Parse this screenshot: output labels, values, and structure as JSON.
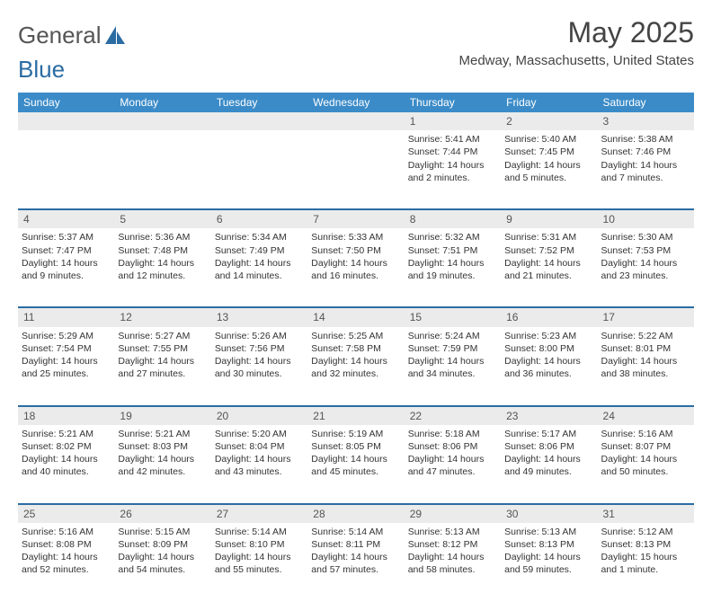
{
  "logo": {
    "text1": "General",
    "text2": "Blue"
  },
  "header": {
    "month": "May 2025",
    "location": "Medway, Massachusetts, United States"
  },
  "colors": {
    "accent": "#3b8bc8",
    "border": "#2b6ca3",
    "daybg": "#ebebeb"
  },
  "weekdays": [
    "Sunday",
    "Monday",
    "Tuesday",
    "Wednesday",
    "Thursday",
    "Friday",
    "Saturday"
  ],
  "layout": {
    "first_day_index": 4,
    "days_in_month": 31
  },
  "days": {
    "1": {
      "sunrise": "5:41 AM",
      "sunset": "7:44 PM",
      "daylight": "14 hours and 2 minutes."
    },
    "2": {
      "sunrise": "5:40 AM",
      "sunset": "7:45 PM",
      "daylight": "14 hours and 5 minutes."
    },
    "3": {
      "sunrise": "5:38 AM",
      "sunset": "7:46 PM",
      "daylight": "14 hours and 7 minutes."
    },
    "4": {
      "sunrise": "5:37 AM",
      "sunset": "7:47 PM",
      "daylight": "14 hours and 9 minutes."
    },
    "5": {
      "sunrise": "5:36 AM",
      "sunset": "7:48 PM",
      "daylight": "14 hours and 12 minutes."
    },
    "6": {
      "sunrise": "5:34 AM",
      "sunset": "7:49 PM",
      "daylight": "14 hours and 14 minutes."
    },
    "7": {
      "sunrise": "5:33 AM",
      "sunset": "7:50 PM",
      "daylight": "14 hours and 16 minutes."
    },
    "8": {
      "sunrise": "5:32 AM",
      "sunset": "7:51 PM",
      "daylight": "14 hours and 19 minutes."
    },
    "9": {
      "sunrise": "5:31 AM",
      "sunset": "7:52 PM",
      "daylight": "14 hours and 21 minutes."
    },
    "10": {
      "sunrise": "5:30 AM",
      "sunset": "7:53 PM",
      "daylight": "14 hours and 23 minutes."
    },
    "11": {
      "sunrise": "5:29 AM",
      "sunset": "7:54 PM",
      "daylight": "14 hours and 25 minutes."
    },
    "12": {
      "sunrise": "5:27 AM",
      "sunset": "7:55 PM",
      "daylight": "14 hours and 27 minutes."
    },
    "13": {
      "sunrise": "5:26 AM",
      "sunset": "7:56 PM",
      "daylight": "14 hours and 30 minutes."
    },
    "14": {
      "sunrise": "5:25 AM",
      "sunset": "7:58 PM",
      "daylight": "14 hours and 32 minutes."
    },
    "15": {
      "sunrise": "5:24 AM",
      "sunset": "7:59 PM",
      "daylight": "14 hours and 34 minutes."
    },
    "16": {
      "sunrise": "5:23 AM",
      "sunset": "8:00 PM",
      "daylight": "14 hours and 36 minutes."
    },
    "17": {
      "sunrise": "5:22 AM",
      "sunset": "8:01 PM",
      "daylight": "14 hours and 38 minutes."
    },
    "18": {
      "sunrise": "5:21 AM",
      "sunset": "8:02 PM",
      "daylight": "14 hours and 40 minutes."
    },
    "19": {
      "sunrise": "5:21 AM",
      "sunset": "8:03 PM",
      "daylight": "14 hours and 42 minutes."
    },
    "20": {
      "sunrise": "5:20 AM",
      "sunset": "8:04 PM",
      "daylight": "14 hours and 43 minutes."
    },
    "21": {
      "sunrise": "5:19 AM",
      "sunset": "8:05 PM",
      "daylight": "14 hours and 45 minutes."
    },
    "22": {
      "sunrise": "5:18 AM",
      "sunset": "8:06 PM",
      "daylight": "14 hours and 47 minutes."
    },
    "23": {
      "sunrise": "5:17 AM",
      "sunset": "8:06 PM",
      "daylight": "14 hours and 49 minutes."
    },
    "24": {
      "sunrise": "5:16 AM",
      "sunset": "8:07 PM",
      "daylight": "14 hours and 50 minutes."
    },
    "25": {
      "sunrise": "5:16 AM",
      "sunset": "8:08 PM",
      "daylight": "14 hours and 52 minutes."
    },
    "26": {
      "sunrise": "5:15 AM",
      "sunset": "8:09 PM",
      "daylight": "14 hours and 54 minutes."
    },
    "27": {
      "sunrise": "5:14 AM",
      "sunset": "8:10 PM",
      "daylight": "14 hours and 55 minutes."
    },
    "28": {
      "sunrise": "5:14 AM",
      "sunset": "8:11 PM",
      "daylight": "14 hours and 57 minutes."
    },
    "29": {
      "sunrise": "5:13 AM",
      "sunset": "8:12 PM",
      "daylight": "14 hours and 58 minutes."
    },
    "30": {
      "sunrise": "5:13 AM",
      "sunset": "8:13 PM",
      "daylight": "14 hours and 59 minutes."
    },
    "31": {
      "sunrise": "5:12 AM",
      "sunset": "8:13 PM",
      "daylight": "15 hours and 1 minute."
    }
  },
  "labels": {
    "sunrise": "Sunrise: ",
    "sunset": "Sunset: ",
    "daylight": "Daylight: "
  }
}
